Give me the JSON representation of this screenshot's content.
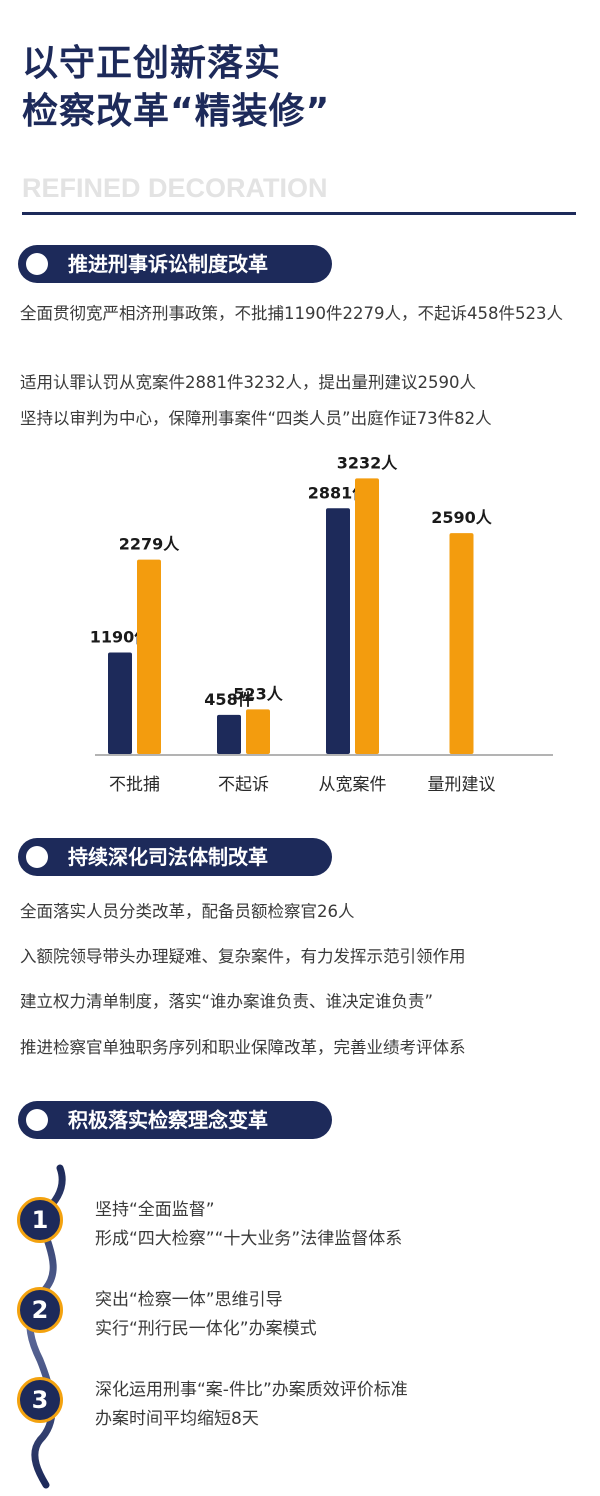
{
  "header": {
    "title_line1": "以守正创新落实",
    "title_line2": "检察改革“精装修”",
    "subtitle": "REFINED DECORATION"
  },
  "section1": {
    "heading": "推进刑事诉讼制度改革",
    "lines": [
      "全面贯彻宽严相济刑事政策，不批捕1190件2279人，不起诉458件523人",
      "适用认罪认罚从宽案件2881件3232人，提出量刑建议2590人",
      "坚持以审判为中心，保障刑事案件“四类人员”出庭作证73件82人"
    ]
  },
  "chart_data": {
    "type": "bar",
    "categories": [
      "不批捕",
      "不起诉",
      "从宽案件",
      "量刑建议"
    ],
    "series": [
      {
        "color": "#1d2a5a",
        "values": [
          1190,
          458,
          2881,
          null
        ],
        "labels": [
          "1190件",
          "458件",
          "2881件",
          ""
        ]
      },
      {
        "color": "#f39c0e",
        "values": [
          2279,
          523,
          3232,
          2590
        ],
        "labels": [
          "2279人",
          "523人",
          "3232人",
          "2590人"
        ]
      }
    ],
    "ylim": [
      0,
      3400
    ],
    "grid": false,
    "legend": "none"
  },
  "section2": {
    "heading": "持续深化司法体制改革",
    "lines": [
      "全面落实人员分类改革，配备员额检察官26人",
      "入额院领导带头办理疑难、复杂案件，有力发挥示范引领作用",
      "建立权力清单制度，落实“谁办案谁负责、谁决定谁负责”",
      "推进检察官单独职务序列和职业保障改革，完善业绩考评体系"
    ]
  },
  "section3": {
    "heading": "积极落实检察理念变革",
    "steps": [
      {
        "num": "1",
        "line1": "坚持“全面监督”",
        "line2": "形成“四大检察”“十大业务”法律监督体系"
      },
      {
        "num": "2",
        "line1": "突出“检察一体”思维引导",
        "line2": "实行“刑行民一体化”办案模式"
      },
      {
        "num": "3",
        "line1": "深化运用刑事“案-件比”办案质效评价标准",
        "line2": "办案时间平均缩短8天"
      }
    ]
  },
  "colors": {
    "navy": "#1d2a5a",
    "orange": "#f39c0e"
  }
}
